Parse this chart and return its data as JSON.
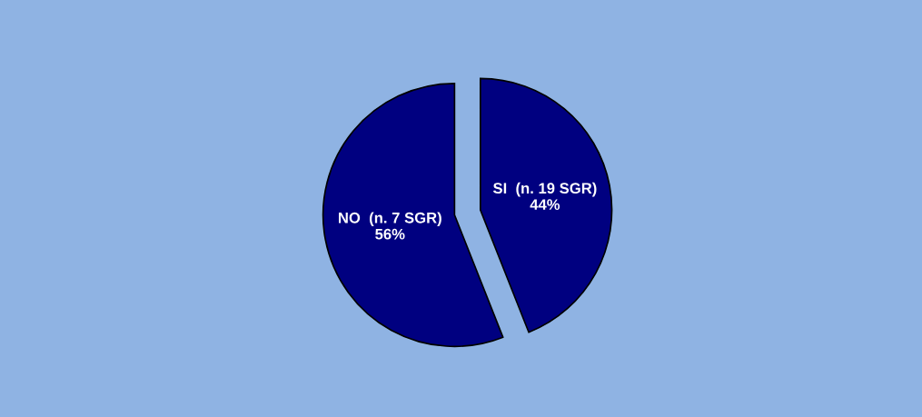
{
  "chart_data": {
    "type": "pie",
    "categories": [
      "SI  (n. 19 SGR)",
      "NO  (n. 7 SGR)"
    ],
    "values": [
      44,
      56
    ],
    "colors": [
      "#000080",
      "#000080"
    ],
    "value_labels": [
      "44%",
      "56%"
    ]
  }
}
